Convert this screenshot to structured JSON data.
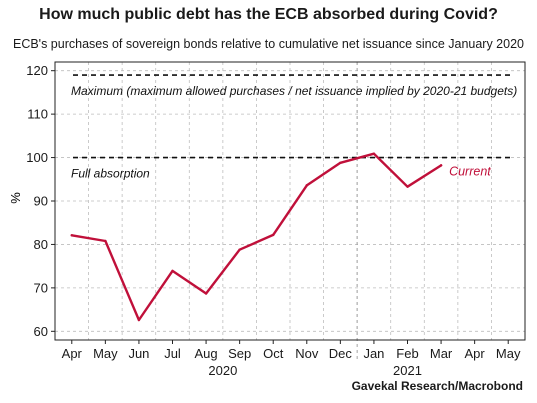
{
  "chart_data": {
    "type": "line",
    "title": "How much public debt has the ECB absorbed during Covid?",
    "subtitle": "ECB's purchases of sovereign bonds relative to cumulative net issuance since January 2020",
    "ylabel": "%",
    "ylim": [
      58,
      122
    ],
    "yticks": [
      60,
      70,
      80,
      90,
      100,
      110,
      120
    ],
    "categories": [
      "Apr",
      "May",
      "Jun",
      "Jul",
      "Aug",
      "Sep",
      "Oct",
      "Nov",
      "Dec",
      "Jan",
      "Feb",
      "Mar",
      "Apr",
      "May"
    ],
    "year_labels": [
      {
        "label": "2020",
        "at_index": 4.5
      },
      {
        "label": "2021",
        "at_index": 10
      }
    ],
    "series": [
      {
        "name": "Current",
        "color": "#c0103a",
        "values": [
          82.1,
          80.8,
          62.6,
          73.9,
          68.7,
          78.8,
          82.2,
          93.6,
          98.8,
          100.9,
          93.3,
          98.2,
          null,
          null
        ]
      }
    ],
    "reference_lines": [
      {
        "value": 119,
        "label": "Maximum (maximum allowed purchases / net issuance implied by 2020-21 budgets)"
      },
      {
        "value": 100,
        "label": "Full absorption"
      }
    ],
    "vertical_divider_after_index": 8.5,
    "grid": true,
    "legend": "none",
    "source": "Gavekal Research/Macrobond"
  }
}
